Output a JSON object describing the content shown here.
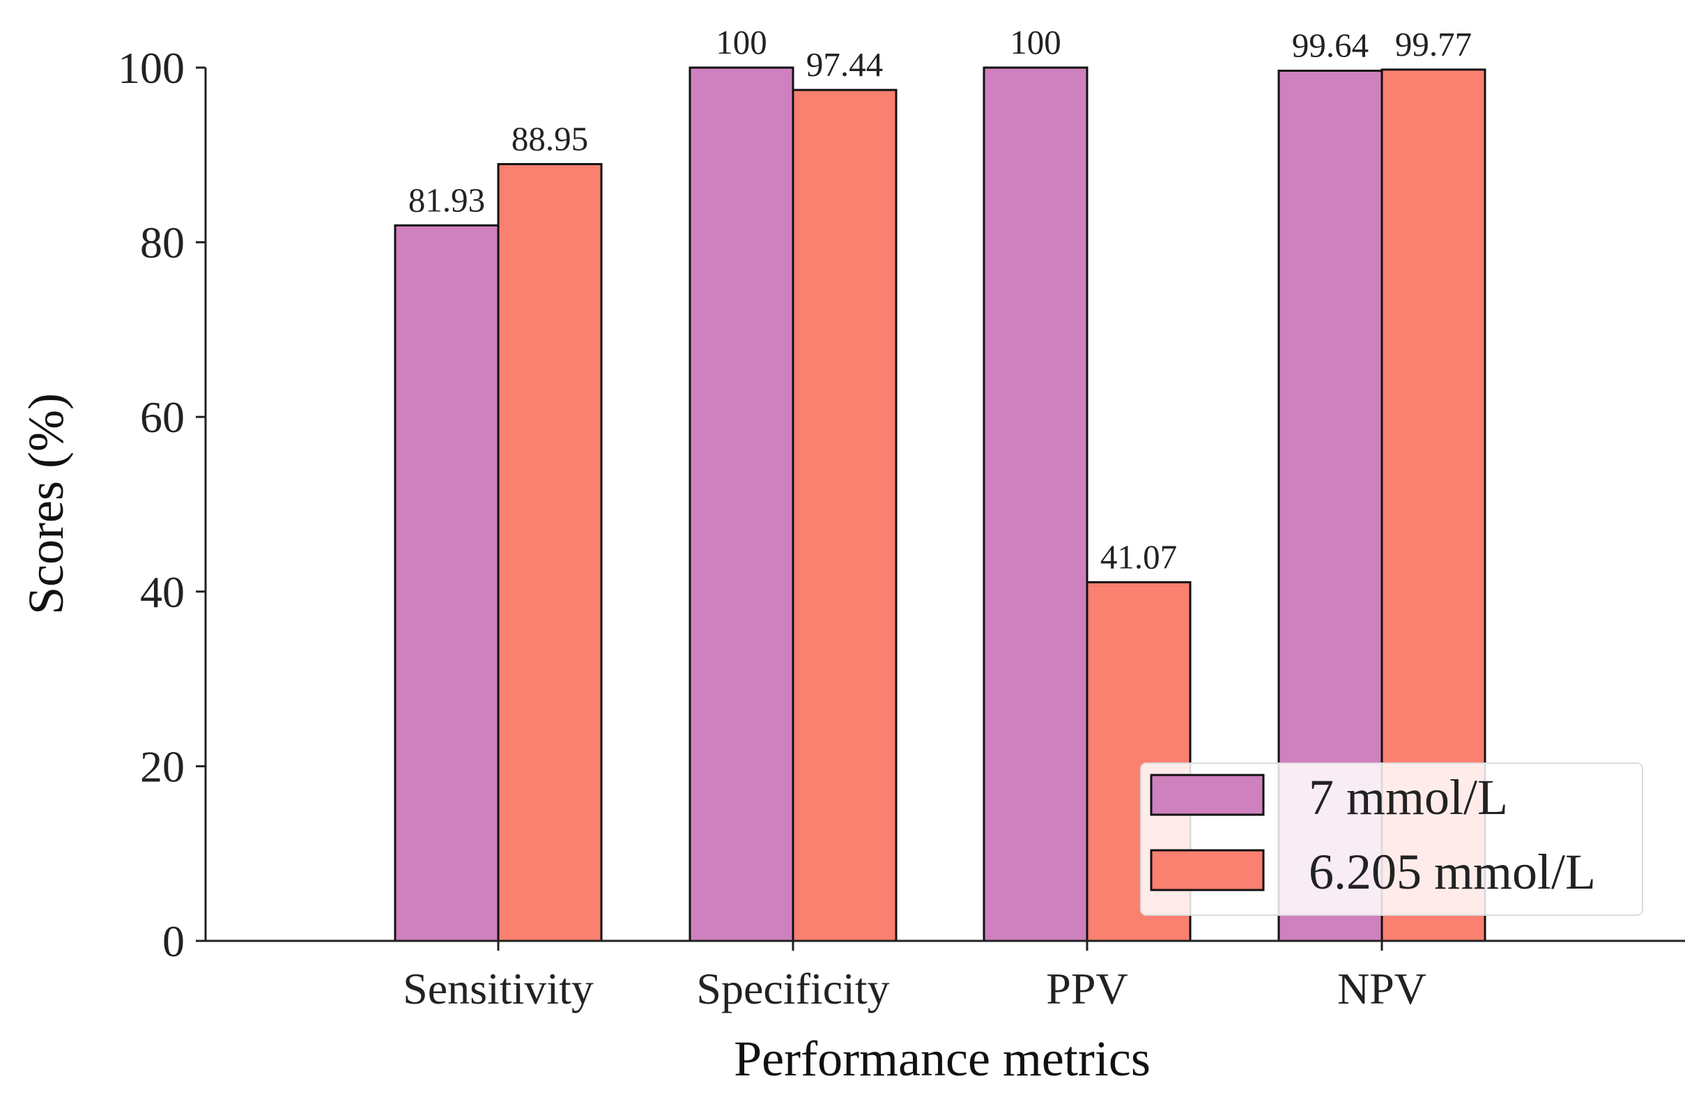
{
  "chart_data": {
    "type": "bar",
    "title": "",
    "xlabel": "Performance metrics",
    "ylabel": "Scores (%)",
    "ylim": [
      0,
      100
    ],
    "yticks": [
      0,
      20,
      40,
      60,
      80,
      100
    ],
    "categories": [
      "Sensitivity",
      "Specificity",
      "PPV",
      "NPV"
    ],
    "series": [
      {
        "name": "7 mmol/L",
        "color": "#cf80be",
        "values": [
          81.93,
          100,
          100,
          99.64
        ],
        "labels": [
          "81.93",
          "100",
          "100",
          "99.64"
        ]
      },
      {
        "name": "6.205 mmol/L",
        "color": "#fa8070",
        "values": [
          88.95,
          97.44,
          41.07,
          99.77
        ],
        "labels": [
          "88.95",
          "97.44",
          "41.07",
          "99.77"
        ]
      }
    ],
    "legend_position": "lower-right",
    "grid": false
  }
}
